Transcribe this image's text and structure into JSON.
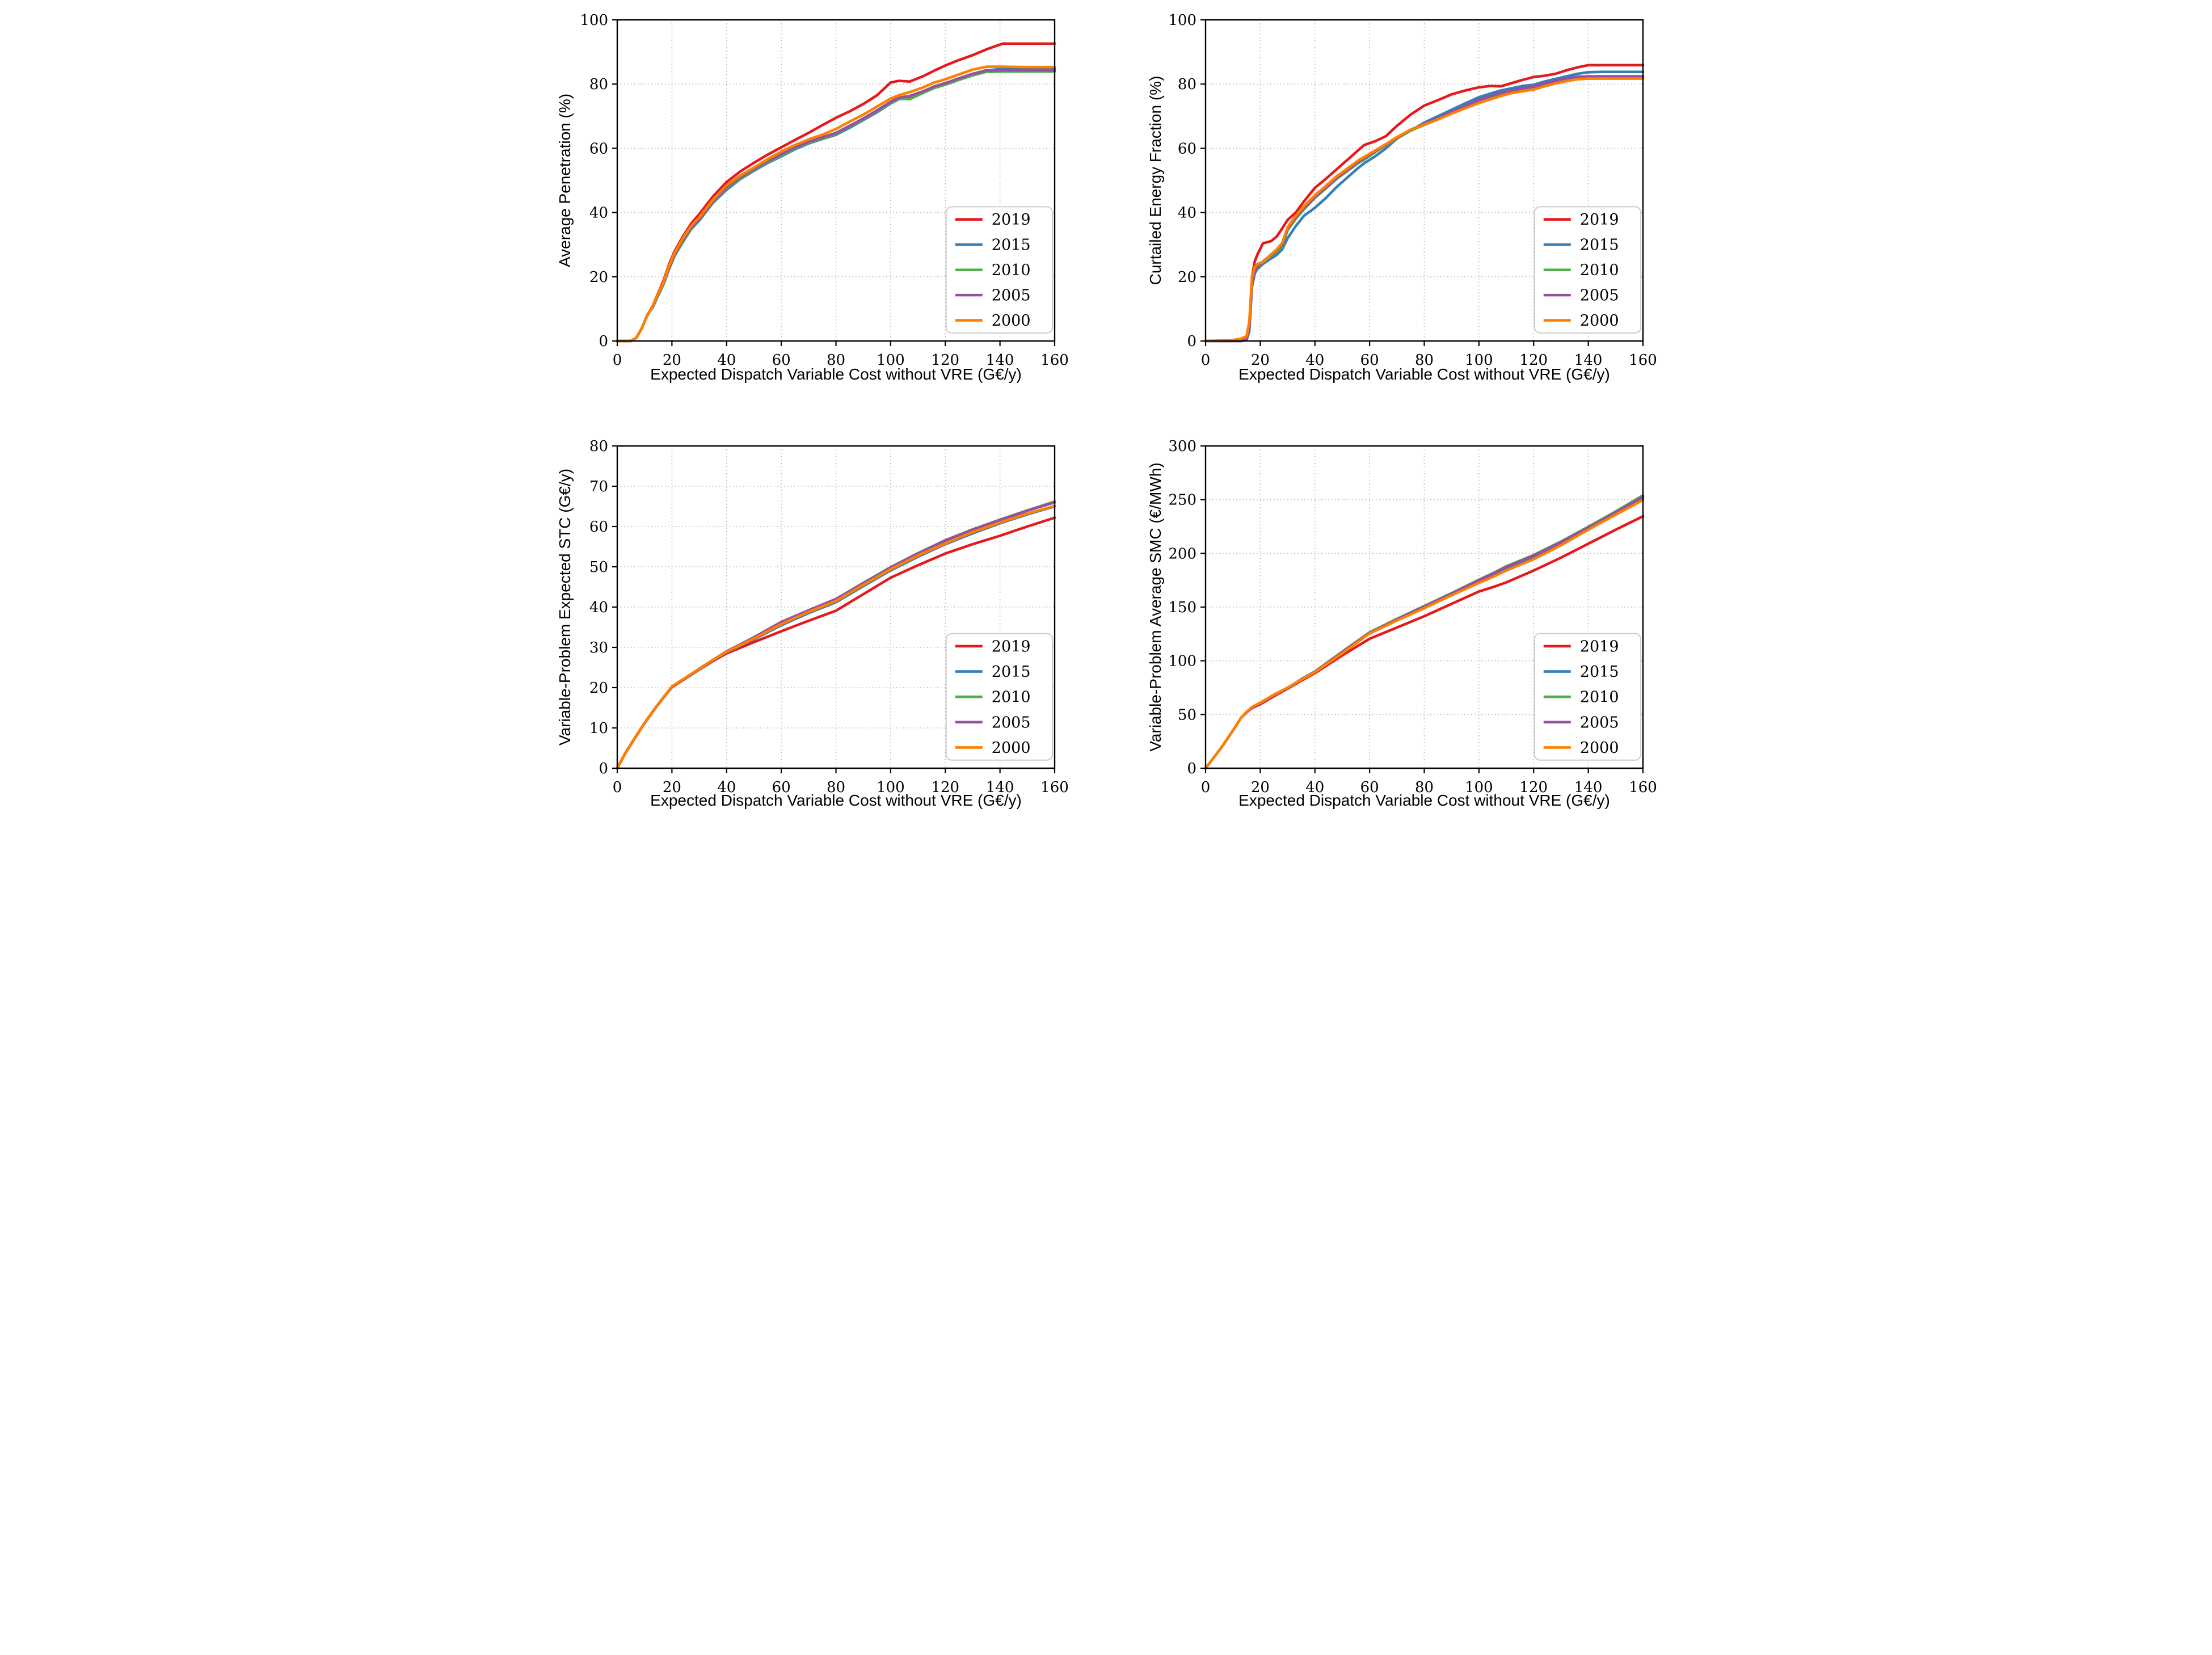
{
  "figure": {
    "background": "#ffffff",
    "grid_color": "#b3b3b3",
    "spine_color": "#000000",
    "legend_border_color": "#cccccc",
    "legend_background": "#ffffff",
    "text_color": "#000000"
  },
  "legend": {
    "position": "lower right",
    "labels": [
      "2019",
      "2015",
      "2010",
      "2005",
      "2000"
    ]
  },
  "series_colors": {
    "2019": "#e41a1c",
    "2015": "#377eb8",
    "2010": "#4daf4a",
    "2005": "#984ea3",
    "2000": "#ff7f00"
  },
  "chart_data": [
    {
      "type": "line",
      "title": "",
      "xlabel": "Expected Dispatch Variable Cost without VRE (G€/y)",
      "ylabel": "Average Penetration (%)",
      "xlim": [
        0,
        160
      ],
      "ylim": [
        0,
        100
      ],
      "xticks": {
        "values": [
          0,
          20,
          40,
          60,
          80,
          100,
          120,
          140,
          160
        ],
        "labels": [
          "0",
          "20",
          "40",
          "60",
          "80",
          "100",
          "120",
          "140",
          "160"
        ]
      },
      "yticks": {
        "values": [
          0,
          20,
          40,
          60,
          80,
          100
        ],
        "labels": [
          "0",
          "20",
          "40",
          "60",
          "80",
          "100"
        ]
      },
      "grid": "dotted",
      "legend_position": "lower right",
      "x": [
        0,
        5,
        7,
        9,
        11,
        13,
        15,
        17,
        19,
        21,
        24,
        27,
        30,
        35,
        40,
        45,
        50,
        55,
        60,
        65,
        70,
        75,
        80,
        85,
        90,
        95,
        100,
        103,
        107,
        112,
        116,
        120,
        125,
        130,
        135,
        141,
        150,
        160
      ],
      "series": [
        {
          "name": "2019",
          "values": [
            0,
            0,
            1,
            4,
            8,
            11,
            15,
            19,
            24,
            28,
            32.5,
            36.5,
            39.5,
            45,
            49.5,
            52.8,
            55.5,
            58,
            60.3,
            62.6,
            64.8,
            67.2,
            69.5,
            71.5,
            73.8,
            76.5,
            80.5,
            81,
            80.8,
            82.5,
            84.2,
            85.8,
            87.5,
            89,
            90.8,
            92.6,
            92.6,
            92.6
          ]
        },
        {
          "name": "2015",
          "values": [
            0,
            0,
            1,
            4,
            8.2,
            10.5,
            14.2,
            17.8,
            22.5,
            26.5,
            30.8,
            34.8,
            37.5,
            43,
            47.1,
            50.4,
            53,
            55.4,
            57.5,
            59.7,
            61.5,
            62.9,
            64.2,
            66.4,
            68.8,
            71.2,
            74,
            75.3,
            75.8,
            77.5,
            79,
            80,
            81.5,
            83,
            84.2,
            84.8,
            84.8,
            84.8
          ]
        },
        {
          "name": "2010",
          "values": [
            0,
            0,
            1,
            4,
            8,
            10.8,
            14.5,
            18,
            22.8,
            26.8,
            31,
            35,
            37.8,
            43.2,
            47.5,
            50.7,
            53.2,
            55.6,
            57.8,
            60,
            61.7,
            63.1,
            64.5,
            66.7,
            69,
            71.5,
            74.2,
            75.5,
            75.3,
            77.3,
            78.8,
            79.8,
            81.3,
            82.7,
            83.8,
            83.9,
            83.9,
            83.9
          ]
        },
        {
          "name": "2005",
          "values": [
            0,
            0,
            1,
            4,
            8,
            10.8,
            14.8,
            18.3,
            23,
            27,
            31.5,
            35.2,
            38,
            43.5,
            47.9,
            51,
            53.5,
            56,
            58.2,
            60.3,
            62,
            63.4,
            64.8,
            67,
            69.3,
            71.8,
            74.5,
            75.8,
            76.3,
            77.8,
            79.3,
            80.3,
            81.8,
            83.2,
            84.3,
            84.3,
            84.3,
            84.3
          ]
        },
        {
          "name": "2000",
          "values": [
            0,
            0,
            1,
            4,
            8,
            11,
            14.8,
            18.5,
            23.5,
            27.5,
            32,
            35.8,
            38.5,
            44,
            48.5,
            51.5,
            54,
            56.6,
            59,
            61,
            62.8,
            64.2,
            66,
            68.3,
            70.5,
            73,
            75.5,
            76.5,
            77.5,
            79,
            80.5,
            81.5,
            83,
            84.5,
            85.4,
            85.4,
            85.3,
            85.3
          ]
        }
      ]
    },
    {
      "type": "line",
      "title": "",
      "xlabel": "Expected Dispatch Variable Cost without VRE (G€/y)",
      "ylabel": "Curtailed Energy Fraction (%)",
      "xlim": [
        0,
        160
      ],
      "ylim": [
        0,
        100
      ],
      "xticks": {
        "values": [
          0,
          20,
          40,
          60,
          80,
          100,
          120,
          140,
          160
        ],
        "labels": [
          "0",
          "20",
          "40",
          "60",
          "80",
          "100",
          "120",
          "140",
          "160"
        ]
      },
      "yticks": {
        "values": [
          0,
          20,
          40,
          60,
          80,
          100
        ],
        "labels": [
          "0",
          "20",
          "40",
          "60",
          "80",
          "100"
        ]
      },
      "grid": "dotted",
      "legend_position": "lower right",
      "x": [
        0,
        10,
        13,
        15,
        16,
        17,
        18,
        19,
        21,
        24,
        26,
        28,
        30,
        33,
        36,
        40,
        44,
        48,
        52,
        56,
        58,
        62,
        66,
        70,
        75,
        80,
        85,
        90,
        95,
        100,
        104,
        108,
        112,
        116,
        120,
        124,
        128,
        132,
        136,
        140,
        145,
        160
      ],
      "series": [
        {
          "name": "2019",
          "values": [
            0,
            0,
            0,
            0.5,
            5,
            20,
            24.8,
            27,
            30.4,
            31.1,
            32.5,
            35,
            37.7,
            40,
            43.5,
            47.7,
            50.5,
            53.5,
            56.5,
            59.5,
            61,
            62.2,
            63.8,
            67,
            70.5,
            73.3,
            75,
            76.8,
            78,
            79,
            79.4,
            79.3,
            80.3,
            81.3,
            82.2,
            82.6,
            83.2,
            84.3,
            85.2,
            85.9,
            85.9,
            85.9
          ]
        },
        {
          "name": "2015",
          "values": [
            0,
            0,
            0,
            0.3,
            3,
            17,
            21,
            22.5,
            24,
            25.7,
            26.8,
            28.5,
            32,
            35.8,
            39,
            41.5,
            44.5,
            48,
            51,
            54,
            55.3,
            57.5,
            60,
            63,
            65.5,
            68,
            70,
            72,
            74,
            75.9,
            77,
            78,
            78.7,
            79.4,
            79.8,
            80.8,
            81.6,
            82.4,
            83.2,
            83.7,
            83.8,
            83.8
          ]
        },
        {
          "name": "2010",
          "values": [
            0,
            0,
            0,
            0.4,
            4,
            19,
            22,
            23,
            24.6,
            26.5,
            27.8,
            29.5,
            34.5,
            38,
            41,
            44.6,
            47.5,
            50.5,
            53,
            55.5,
            56.4,
            58.8,
            61,
            63,
            65.5,
            67.3,
            69,
            71,
            73,
            74.8,
            76,
            77,
            77.8,
            78.4,
            78.8,
            79.8,
            80.7,
            81.3,
            81.8,
            81.9,
            81.9,
            81.9
          ]
        },
        {
          "name": "2005",
          "values": [
            0,
            0,
            0,
            0.4,
            4,
            18,
            22,
            23.2,
            24.8,
            26.8,
            28.2,
            30,
            35,
            38.5,
            41.5,
            44.8,
            47.8,
            50.8,
            53.3,
            55.8,
            57,
            59,
            61.2,
            63.3,
            65.8,
            67.6,
            69.3,
            71.3,
            73.2,
            75.1,
            76.2,
            77.2,
            78,
            78.7,
            79.2,
            80.2,
            81,
            81.8,
            82.3,
            82.4,
            82.4,
            82.4
          ]
        },
        {
          "name": "2000",
          "values": [
            0,
            0.3,
            0.7,
            1.5,
            6,
            20,
            23,
            24,
            24.6,
            27,
            28.5,
            30.5,
            35.4,
            39,
            42,
            45.4,
            48.3,
            51.3,
            53.8,
            56.3,
            57.3,
            59.3,
            61.3,
            63.5,
            65.8,
            67.4,
            69,
            70.8,
            72.5,
            74.1,
            75.2,
            76.3,
            77.2,
            77.8,
            78.3,
            79.3,
            80.2,
            80.9,
            81.5,
            81.7,
            81.7,
            81.7
          ]
        }
      ]
    },
    {
      "type": "line",
      "title": "",
      "xlabel": "Expected Dispatch Variable Cost without VRE (G€/y)",
      "ylabel": "Variable-Problem Expected STC (G€/y)",
      "xlim": [
        0,
        160
      ],
      "ylim": [
        0,
        80
      ],
      "xticks": {
        "values": [
          0,
          20,
          40,
          60,
          80,
          100,
          120,
          140,
          160
        ],
        "labels": [
          "0",
          "20",
          "40",
          "60",
          "80",
          "100",
          "120",
          "140",
          "160"
        ]
      },
      "yticks": {
        "values": [
          0,
          10,
          20,
          30,
          40,
          50,
          60,
          70,
          80
        ],
        "labels": [
          "0",
          "10",
          "20",
          "30",
          "40",
          "50",
          "60",
          "70",
          "80"
        ]
      },
      "grid": "dotted",
      "legend_position": "lower right",
      "x": [
        0,
        3,
        6,
        10,
        14,
        17,
        20,
        25,
        30,
        35,
        40,
        50,
        60,
        70,
        80,
        90,
        100,
        110,
        120,
        130,
        140,
        150,
        160
      ],
      "series": [
        {
          "name": "2019",
          "values": [
            0,
            3.8,
            7,
            11.2,
            15,
            17.6,
            20.1,
            22.3,
            24.5,
            26.6,
            28.5,
            31.3,
            34,
            36.6,
            39.1,
            43.2,
            47.3,
            50.4,
            53.3,
            55.6,
            57.7,
            60,
            62.2
          ]
        },
        {
          "name": "2015",
          "values": [
            0,
            3.8,
            7,
            11.2,
            15,
            17.6,
            20.2,
            22.4,
            24.6,
            26.8,
            28.8,
            32,
            35.5,
            38.5,
            41.2,
            45.2,
            49.1,
            52.5,
            55.6,
            58.3,
            60.8,
            63,
            65
          ]
        },
        {
          "name": "2010",
          "values": [
            0,
            3.8,
            7,
            11.2,
            15,
            17.6,
            20.2,
            22.4,
            24.7,
            26.9,
            29,
            32.5,
            36.2,
            39.2,
            42,
            46,
            49.9,
            53.4,
            56.6,
            59.3,
            61.7,
            64,
            66.2
          ]
        },
        {
          "name": "2005",
          "values": [
            0,
            3.8,
            7,
            11.2,
            15,
            17.6,
            20.2,
            22.4,
            24.7,
            26.9,
            29,
            32.5,
            36.3,
            39.2,
            42,
            45.9,
            49.8,
            53.3,
            56.5,
            59.2,
            61.6,
            63.9,
            66
          ]
        },
        {
          "name": "2000",
          "values": [
            0,
            3.9,
            7.1,
            11.3,
            15.1,
            17.7,
            20.3,
            22.5,
            24.7,
            26.9,
            28.9,
            32.2,
            35.8,
            38.8,
            41.5,
            45.5,
            49.4,
            52.8,
            55.8,
            58.6,
            61,
            63.2,
            65.1
          ]
        }
      ]
    },
    {
      "type": "line",
      "title": "",
      "xlabel": "Expected Dispatch Variable Cost without VRE (G€/y)",
      "ylabel": "Variable-Problem Average SMC (€/MWh)",
      "xlim": [
        0,
        160
      ],
      "ylim": [
        0,
        300
      ],
      "xticks": {
        "values": [
          0,
          20,
          40,
          60,
          80,
          100,
          120,
          140,
          160
        ],
        "labels": [
          "0",
          "20",
          "40",
          "60",
          "80",
          "100",
          "120",
          "140",
          "160"
        ]
      },
      "yticks": {
        "values": [
          0,
          50,
          100,
          150,
          200,
          250,
          300
        ],
        "labels": [
          "0",
          "50",
          "100",
          "150",
          "200",
          "250",
          "300"
        ]
      },
      "grid": "dotted",
      "legend_position": "lower right",
      "x": [
        0,
        3,
        6,
        10,
        13,
        15,
        17,
        20,
        25,
        30,
        35,
        40,
        50,
        60,
        70,
        80,
        90,
        100,
        105,
        110,
        120,
        130,
        140,
        150,
        160
      ],
      "series": [
        {
          "name": "2019",
          "values": [
            0,
            10,
            20,
            35,
            47,
            52,
            56,
            59.5,
            67,
            74,
            81.5,
            88.5,
            105,
            120.5,
            131,
            141.5,
            153,
            164.5,
            168.5,
            173,
            184,
            196,
            209,
            222,
            234.5
          ]
        },
        {
          "name": "2015",
          "values": [
            0,
            10,
            20,
            35,
            47,
            52,
            56.5,
            60.5,
            68,
            74.5,
            82.5,
            89.5,
            107.5,
            125.5,
            138,
            150,
            162,
            174,
            180,
            186.5,
            197,
            209.5,
            222.5,
            236.5,
            251
          ]
        },
        {
          "name": "2010",
          "values": [
            0,
            10,
            20,
            35,
            47,
            52,
            56.5,
            60.5,
            68,
            74.5,
            83,
            90,
            108.5,
            126.5,
            139,
            151,
            163,
            175.5,
            181.5,
            188,
            198.5,
            211,
            224.8,
            239,
            254
          ]
        },
        {
          "name": "2005",
          "values": [
            0,
            10,
            20,
            35,
            47,
            52,
            56.5,
            60.5,
            68,
            74.5,
            82.8,
            89.8,
            108,
            126,
            138.5,
            150.5,
            162.5,
            174.8,
            180.8,
            187.3,
            197.8,
            210.3,
            223.9,
            238,
            252.7
          ]
        },
        {
          "name": "2000",
          "values": [
            0,
            10,
            20,
            35,
            47,
            52.5,
            57,
            61,
            68.5,
            75,
            82.5,
            89.3,
            107,
            125.5,
            137.5,
            149,
            161,
            172.5,
            178,
            184,
            194.5,
            207.5,
            222.1,
            236,
            249.6
          ]
        }
      ]
    }
  ]
}
